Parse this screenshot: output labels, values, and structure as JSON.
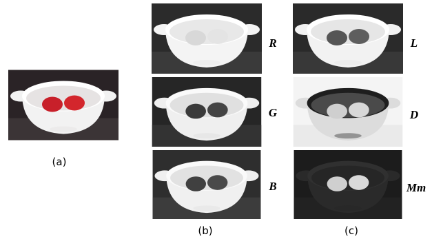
{
  "panels": {
    "a": {
      "caption": "(a)"
    },
    "b": {
      "caption": "(b)",
      "labels": [
        "R",
        "G",
        "B"
      ]
    },
    "c": {
      "caption": "(c)",
      "labels": [
        "L",
        "D",
        "Mm"
      ]
    }
  }
}
